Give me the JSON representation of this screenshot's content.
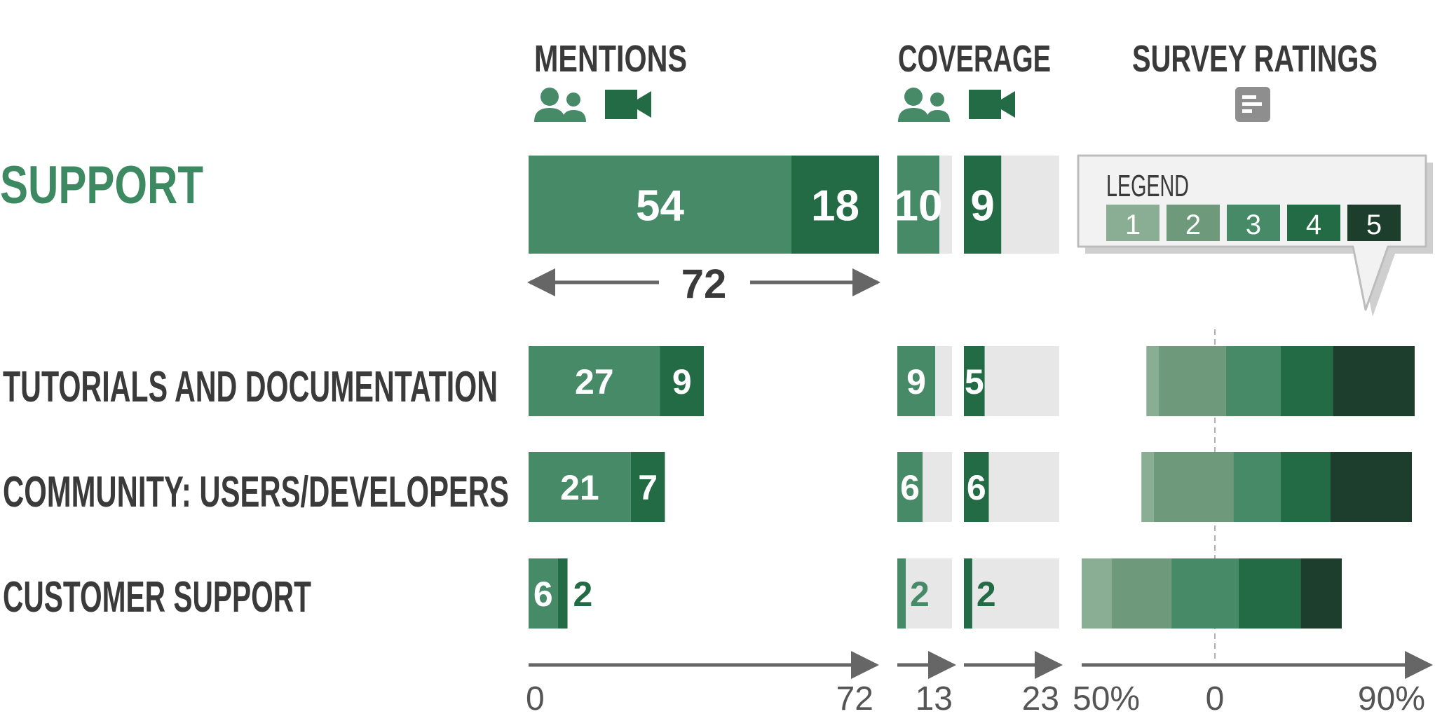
{
  "headers": {
    "mentions": "MENTIONS",
    "coverage": "COVERAGE",
    "survey": "SURVEY RATINGS"
  },
  "icons": {
    "people": "people-icon",
    "video": "video-camera-icon",
    "survey": "survey-list-icon"
  },
  "colors": {
    "green1": "#8aae93",
    "green2": "#6e9a7b",
    "green3": "#468a68",
    "green4": "#236b45",
    "green5": "#1d3e2c",
    "light": "#e6e7e6",
    "title": "#3d8a62",
    "text": "#3a3a3a",
    "axis": "#666666"
  },
  "legend": {
    "title": "LEGEND",
    "items": [
      "1",
      "2",
      "3",
      "4",
      "5"
    ]
  },
  "chart_data": {
    "type": "bar",
    "rows": [
      {
        "label": "SUPPORT",
        "mentions_people": 54,
        "mentions_video": 18,
        "mentions_total": "72",
        "coverage_people": 10,
        "coverage_video": 9
      },
      {
        "label": "TUTORIALS AND DOCUMENTATION",
        "mentions_people": 27,
        "mentions_video": 9,
        "coverage_people": 9,
        "coverage_video": 5,
        "survey": [
          -24,
          -19,
          8,
          30,
          51
        ]
      },
      {
        "label": "COMMUNITY: USERS/DEVELOPERS",
        "mentions_people": 21,
        "mentions_video": 7,
        "coverage_people": 6,
        "coverage_video": 6,
        "survey": [
          -26,
          -21,
          11,
          30,
          50
        ]
      },
      {
        "label": "CUSTOMER SUPPORT",
        "mentions_people": 6,
        "mentions_video": 2,
        "coverage_people": 2,
        "coverage_video": 2,
        "survey": [
          -50,
          -38,
          -14,
          13,
          38
        ]
      }
    ],
    "axes": {
      "mentions": {
        "min": 0,
        "max": 72,
        "labels": [
          "0",
          "72"
        ]
      },
      "coverage_people": {
        "max": 13,
        "label": "13"
      },
      "coverage_video": {
        "max": 23,
        "label": "23"
      },
      "survey": {
        "min": -50,
        "max": 90,
        "labels": [
          "50%",
          "0",
          "90%"
        ]
      }
    }
  }
}
